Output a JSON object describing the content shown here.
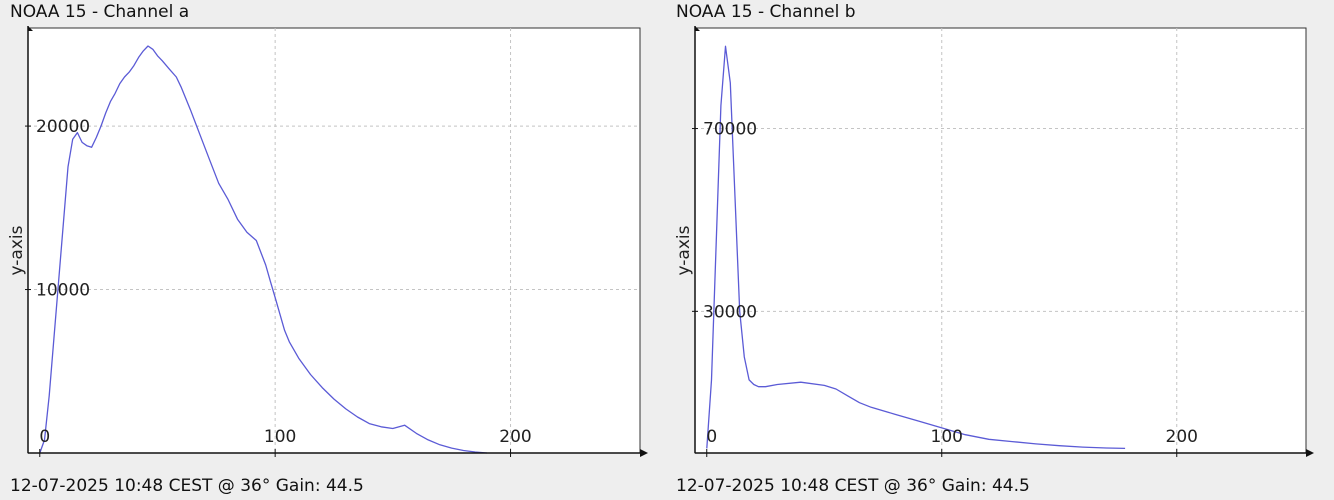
{
  "chart_data": [
    {
      "type": "line",
      "title": "NOAA 15 - Channel a",
      "caption": "12-07-2025 10:48 CEST @ 36° Gain: 44.5",
      "xlabel": "",
      "ylabel": "y-axis",
      "xlim": [
        -5,
        255
      ],
      "ylim": [
        0,
        26000
      ],
      "x_ticks": [
        0,
        100,
        200
      ],
      "y_ticks": [
        10000,
        20000
      ],
      "grid": true,
      "line_color": "#5b5bd6",
      "series": [
        {
          "x": [
            0,
            2,
            4,
            6,
            8,
            10,
            12,
            14,
            16,
            18,
            20,
            22,
            24,
            26,
            28,
            30,
            32,
            34,
            36,
            38,
            40,
            42,
            44,
            46,
            48,
            50,
            52,
            55,
            58,
            60,
            64,
            68,
            72,
            76,
            80,
            84,
            88,
            92,
            96,
            98,
            100,
            102,
            104,
            106,
            110,
            115,
            120,
            125,
            130,
            135,
            140,
            145,
            150,
            155,
            160,
            165,
            170,
            175,
            180,
            185,
            190
          ],
          "y": [
            0,
            800,
            3500,
            7000,
            10500,
            14000,
            17500,
            19200,
            19600,
            19000,
            18800,
            18700,
            19300,
            20000,
            20800,
            21500,
            22000,
            22600,
            23000,
            23300,
            23700,
            24200,
            24600,
            24900,
            24700,
            24300,
            24000,
            23500,
            23000,
            22400,
            21000,
            19500,
            18000,
            16500,
            15500,
            14300,
            13500,
            13000,
            11500,
            10500,
            9500,
            8500,
            7500,
            6800,
            5800,
            4800,
            4000,
            3300,
            2700,
            2200,
            1800,
            1600,
            1500,
            1700,
            1200,
            800,
            500,
            300,
            150,
            60,
            0
          ]
        }
      ]
    },
    {
      "type": "line",
      "title": "NOAA 15 - Channel b",
      "caption": "12-07-2025 10:48 CEST @ 36° Gain: 44.5",
      "xlabel": "",
      "ylabel": "y-axis",
      "xlim": [
        -5,
        255
      ],
      "ylim": [
        -1000,
        92000
      ],
      "x_ticks": [
        0,
        100,
        200
      ],
      "y_ticks": [
        30000,
        70000
      ],
      "grid": true,
      "line_color": "#5b5bd6",
      "series": [
        {
          "x": [
            0,
            2,
            4,
            6,
            8,
            10,
            12,
            14,
            16,
            18,
            20,
            22,
            25,
            30,
            40,
            50,
            55,
            60,
            65,
            70,
            80,
            90,
            100,
            110,
            120,
            130,
            140,
            150,
            160,
            170,
            178
          ],
          "y": [
            0,
            15000,
            45000,
            75000,
            88000,
            80000,
            55000,
            30000,
            20000,
            15000,
            14000,
            13500,
            13500,
            14000,
            14500,
            13800,
            13000,
            11500,
            10000,
            9000,
            7500,
            6000,
            4500,
            3000,
            2000,
            1500,
            1000,
            600,
            300,
            100,
            0
          ]
        }
      ]
    }
  ]
}
